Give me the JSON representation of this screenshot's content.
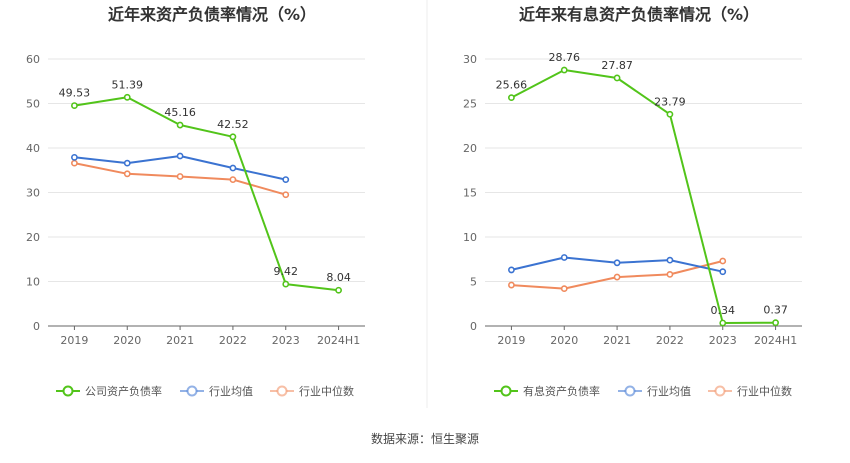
{
  "source_text": "数据来源：恒生聚源",
  "chart_data": [
    {
      "type": "line",
      "title": "近年来资产负债率情况（%）",
      "categories": [
        "2019",
        "2020",
        "2021",
        "2022",
        "2023",
        "2024H1"
      ],
      "ylim": [
        0,
        60
      ],
      "yticks": [
        0,
        10,
        20,
        30,
        40,
        50,
        60
      ],
      "grid": true,
      "legend_position": "bottom",
      "series": [
        {
          "name": "公司资产负债率",
          "color": "#52c41a",
          "values": [
            49.53,
            51.39,
            45.16,
            42.52,
            9.42,
            8.04
          ],
          "labels": [
            "49.53",
            "51.39",
            "45.16",
            "42.52",
            "9.42",
            "8.04"
          ],
          "show_labels": true
        },
        {
          "name": "行业均值",
          "color": "#3b73d1",
          "values": [
            37.9,
            36.6,
            38.2,
            35.5,
            32.9,
            null
          ],
          "show_labels": false
        },
        {
          "name": "行业中位数",
          "color": "#f08a5d",
          "values": [
            36.6,
            34.2,
            33.6,
            32.9,
            29.5,
            null
          ],
          "show_labels": false
        }
      ]
    },
    {
      "type": "line",
      "title": "近年来有息资产负债率情况（%）",
      "categories": [
        "2019",
        "2020",
        "2021",
        "2022",
        "2023",
        "2024H1"
      ],
      "ylim": [
        0,
        30
      ],
      "yticks": [
        0,
        5,
        10,
        15,
        20,
        25,
        30
      ],
      "grid": true,
      "legend_position": "bottom",
      "series": [
        {
          "name": "有息资产负债率",
          "color": "#52c41a",
          "values": [
            25.66,
            28.76,
            27.87,
            23.79,
            0.34,
            0.37
          ],
          "labels": [
            "25.66",
            "28.76",
            "27.87",
            "23.79",
            "0.34",
            "0.37"
          ],
          "show_labels": true
        },
        {
          "name": "行业均值",
          "color": "#3b73d1",
          "values": [
            6.3,
            7.7,
            7.1,
            7.4,
            6.1,
            null
          ],
          "show_labels": false
        },
        {
          "name": "行业中位数",
          "color": "#f08a5d",
          "values": [
            4.6,
            4.2,
            5.5,
            5.8,
            7.3,
            null
          ],
          "show_labels": false
        }
      ]
    }
  ]
}
